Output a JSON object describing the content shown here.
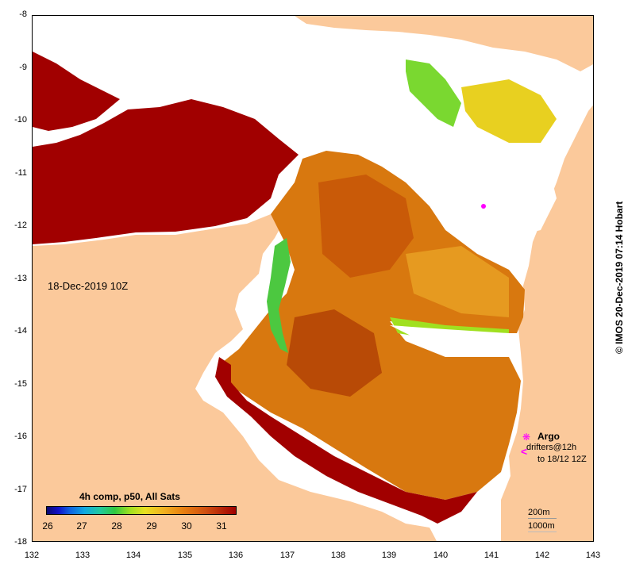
{
  "map": {
    "timestamp": "18-Dec-2019 10Z",
    "credit": "© IMOS 20-Dec-2019 07:14 Hobart",
    "x_ticks": [
      "132",
      "133",
      "134",
      "135",
      "136",
      "137",
      "138",
      "139",
      "140",
      "141",
      "142",
      "143"
    ],
    "y_ticks": [
      "-8",
      "-9",
      "-10",
      "-11",
      "-12",
      "-13",
      "-14",
      "-15",
      "-16",
      "-17",
      "-18"
    ],
    "x_range": [
      132,
      143
    ],
    "y_range": [
      -18,
      -8
    ],
    "legend": {
      "title": "4h comp, p50, All Sats",
      "labels": [
        "26",
        "27",
        "28",
        "29",
        "30",
        "31"
      ]
    },
    "argo_label": "Argo",
    "drifter_label_1": "drifters@12h",
    "drifter_label_2": "to 18/12 12Z",
    "depth_200": "200m",
    "depth_1000": "1000m",
    "colors": {
      "land": "#fbc99b",
      "no_data": "#ffffff",
      "sst_hot": "#a10000",
      "sst_warm": "#c45a0a",
      "sst_mid": "#e08a10",
      "sst_cool": "#30c840",
      "argo": "#ff00ff"
    }
  }
}
